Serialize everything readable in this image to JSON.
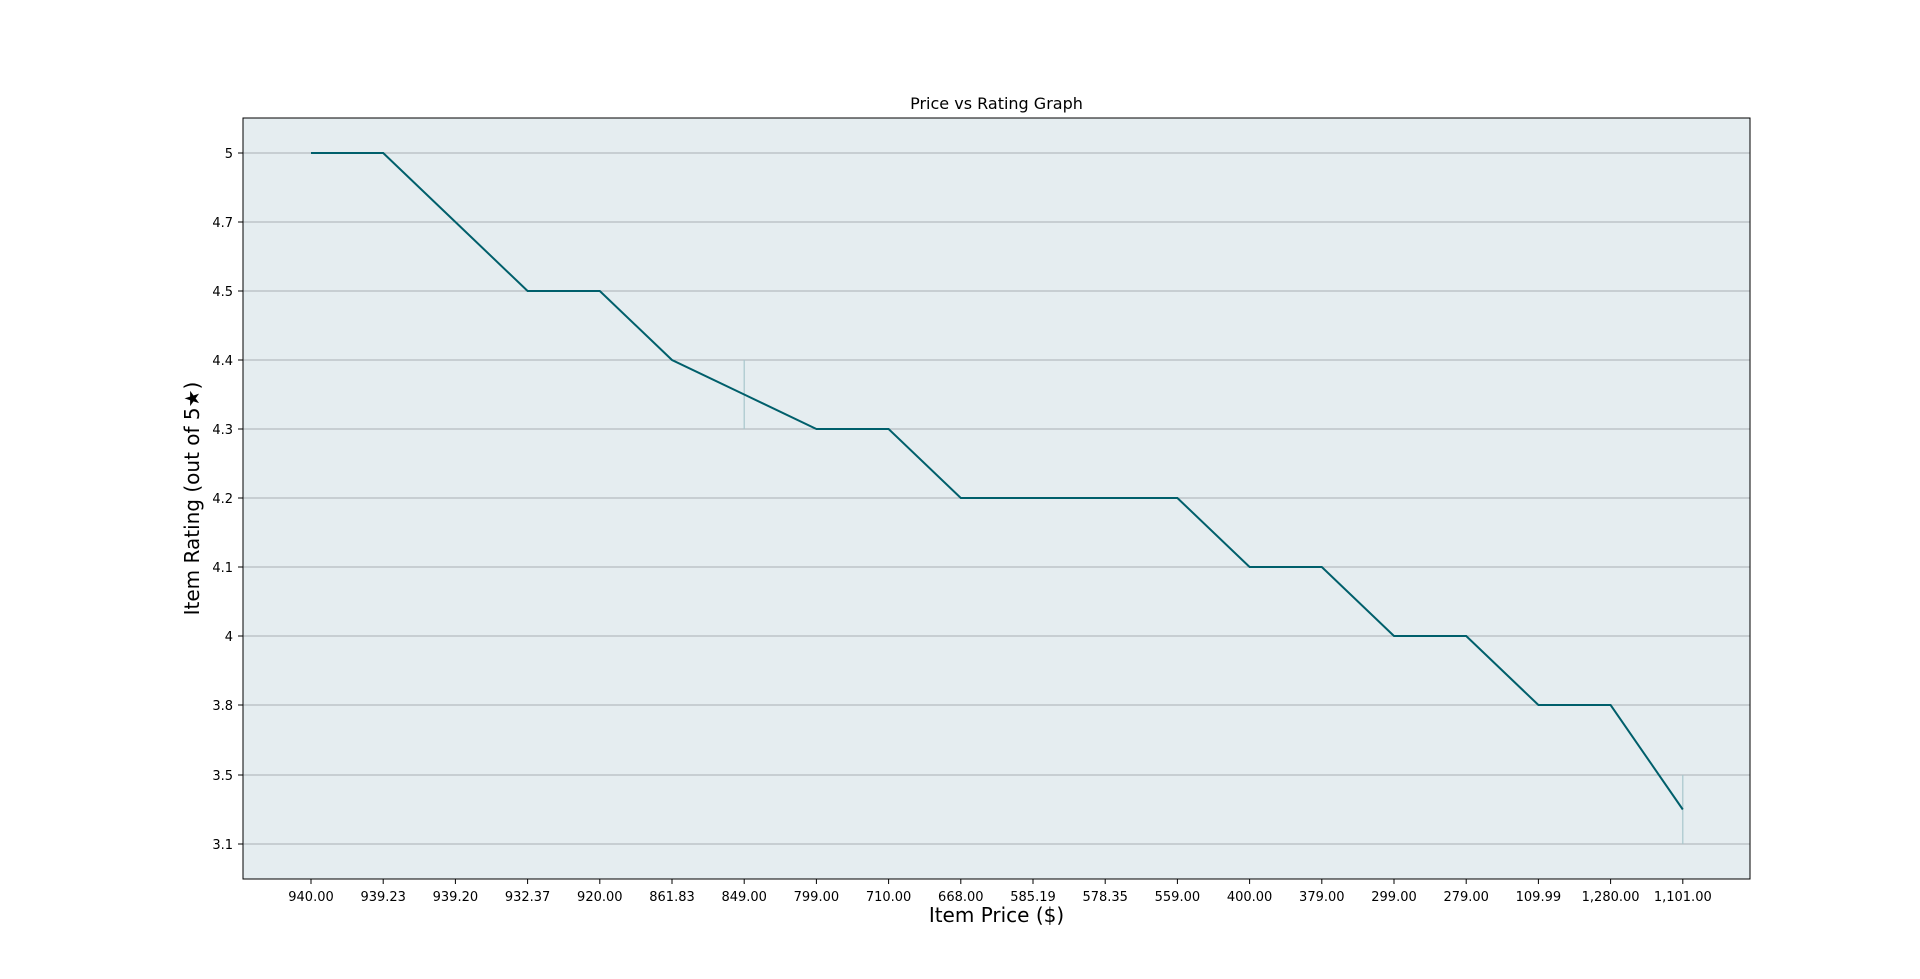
{
  "chart_data": {
    "type": "line",
    "title": "Price vs Rating Graph",
    "xlabel": "Item Price ($)",
    "ylabel": "Item Rating (out of 5★)",
    "categories": [
      "940.00",
      "939.23",
      "939.20",
      "932.37",
      "920.00",
      "861.83",
      "849.00",
      "799.00",
      "710.00",
      "668.00",
      "585.19",
      "578.35",
      "559.00",
      "400.00",
      "379.00",
      "299.00",
      "279.00",
      "109.99",
      "1,280.00",
      "1,101.00"
    ],
    "y_ticks": [
      "5",
      "4.7",
      "4.5",
      "4.4",
      "4.3",
      "4.2",
      "4.1",
      "4",
      "3.8",
      "3.5",
      "3.1"
    ],
    "series": [
      {
        "values": [
          5,
          5,
          4.7,
          4.5,
          4.5,
          4.4,
          4.35,
          4.3,
          4.3,
          4.2,
          4.2,
          4.2,
          4.2,
          4.1,
          4.1,
          4,
          4,
          3.8,
          3.8,
          3.3
        ],
        "range_markers": [
          {
            "category": "849.00",
            "low": 4.3,
            "high": 4.4
          },
          {
            "category": "1,101.00",
            "low": 3.1,
            "high": 3.5
          }
        ]
      }
    ],
    "grid": "horizontal",
    "colors": {
      "line": "#005f6b",
      "plot_background": "#e5edf0",
      "grid": "#a9b0b4",
      "range_marker": "#a8c6cc"
    }
  }
}
